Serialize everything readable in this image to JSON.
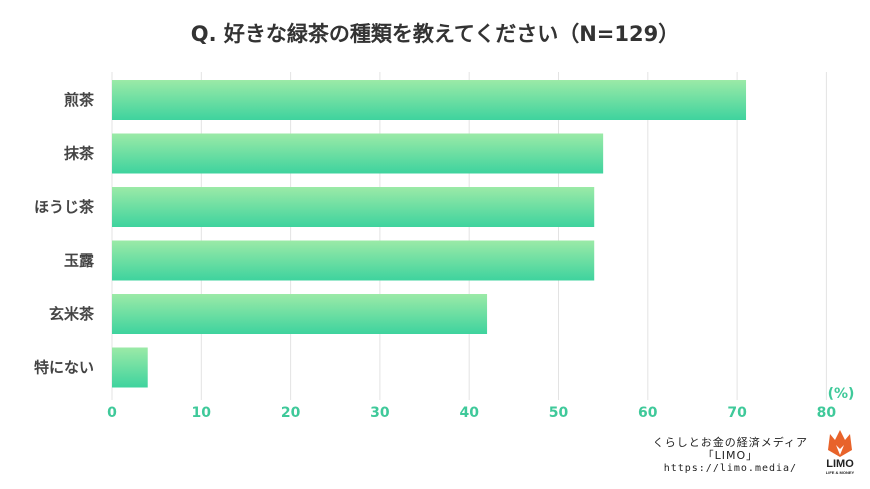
{
  "chart_data": {
    "type": "bar",
    "orientation": "horizontal",
    "title": "Q. 好きな緑茶の種類を教えてください（N=129）",
    "categories": [
      "煎茶",
      "抹茶",
      "ほうじ茶",
      "玉露",
      "玄米茶",
      "特にない"
    ],
    "values": [
      71,
      55,
      54,
      54,
      42,
      4
    ],
    "xlim": [
      0,
      80
    ],
    "xticks": [
      "0",
      "10",
      "20",
      "30",
      "40",
      "50",
      "60",
      "70",
      "80"
    ],
    "unit": "(%)",
    "grid": true,
    "colors": {
      "bar_top": "#9beaa7",
      "bar_bottom": "#3ed39e",
      "tick": "#3fc99a"
    }
  },
  "footer": {
    "line1": "くらしとお金の経済メディア",
    "line2": "「LIMO」",
    "url": "https://limo.media/"
  },
  "logo": {
    "name": "LIMO",
    "sub": "LIFE & MONEY",
    "icon": "fox-icon"
  }
}
